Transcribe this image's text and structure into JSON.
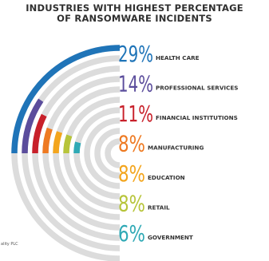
{
  "header": {
    "title_line1": "INDUSTRIES WITH HIGHEST PERCENTAGE",
    "title_line2": "OF RANSOMWARE INCIDENTS"
  },
  "footnote": "ality PLC",
  "chart_data": {
    "type": "radial-bar",
    "title": "INDUSTRIES WITH HIGHEST PERCENTAGE OF RANSOMWARE INCIDENTS",
    "categories": [
      "HEALTH CARE",
      "PROFESSIONAL SERVICES",
      "FINANCIAL INSTITUTIONS",
      "MANUFACTURING",
      "EDUCATION",
      "RETAIL",
      "GOVERNMENT"
    ],
    "values": [
      29,
      14,
      11,
      8,
      8,
      8,
      6
    ],
    "value_labels": [
      "29%",
      "14%",
      "11%",
      "8%",
      "8%",
      "8%",
      "6%"
    ],
    "colors": [
      "#1f74b8",
      "#5b4d9c",
      "#c8202a",
      "#ee7a22",
      "#f3a51d",
      "#b7c43a",
      "#2fa9b5"
    ],
    "track_color": "#dcdcdc",
    "label_color": "#333333"
  }
}
